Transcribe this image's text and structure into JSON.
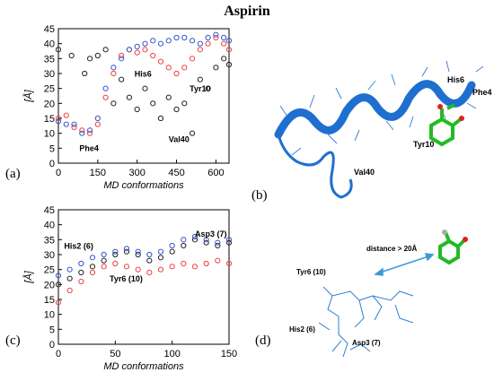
{
  "title": "Aspirin",
  "panel_letters": {
    "a": "(a)",
    "b": "(b)",
    "c": "(c)",
    "d": "(d)"
  },
  "colors": {
    "black_series": "#222222",
    "red_series": "#f04040",
    "blue_series": "#3355cc",
    "protein": "#1f6fd0",
    "ligand": "#22bb22"
  },
  "structure_b": {
    "labels": {
      "his6": "His6",
      "phe4": "Phe4",
      "tyr10": "Tyr10",
      "val40": "Val40"
    }
  },
  "structure_d": {
    "labels": {
      "distance": "distance > 20Å",
      "tyr6": "Tyr6 (10)",
      "his2": "His2 (6)",
      "asp3": "Asp3 (7)"
    }
  },
  "chart_data": [
    {
      "type": "scatter",
      "panel": "(a)",
      "title": "",
      "xlabel": "MD conformations",
      "ylabel": "[Å]",
      "xlim": [
        0,
        650
      ],
      "ylim": [
        0,
        45
      ],
      "xticks": [
        0,
        150,
        300,
        450,
        600
      ],
      "yticks": [
        0,
        5,
        10,
        15,
        20,
        25,
        30,
        35,
        40,
        45
      ],
      "grid": false,
      "annotations": [
        "Phe4",
        "His6",
        "Tyr10",
        "Val40"
      ],
      "series": [
        {
          "color": "#222222",
          "x": [
            0,
            50,
            100,
            120,
            150,
            180,
            210,
            240,
            270,
            300,
            330,
            360,
            390,
            420,
            450,
            480,
            510,
            540,
            570,
            600,
            630,
            650
          ],
          "y": [
            38,
            36,
            30,
            35,
            36,
            38,
            20,
            28,
            22,
            18,
            25,
            20,
            15,
            22,
            18,
            20,
            10,
            28,
            25,
            32,
            35,
            33
          ]
        },
        {
          "color": "#f04040",
          "x": [
            0,
            30,
            60,
            90,
            120,
            150,
            180,
            210,
            240,
            270,
            300,
            330,
            360,
            390,
            420,
            450,
            480,
            510,
            540,
            570,
            600,
            630,
            650
          ],
          "y": [
            15,
            16,
            12,
            11,
            10,
            13,
            22,
            30,
            36,
            38,
            37,
            38,
            36,
            34,
            32,
            30,
            32,
            35,
            38,
            40,
            42,
            40,
            38
          ]
        },
        {
          "color": "#3355cc",
          "x": [
            0,
            30,
            60,
            90,
            120,
            150,
            180,
            210,
            240,
            270,
            300,
            330,
            360,
            390,
            420,
            450,
            480,
            510,
            540,
            570,
            600,
            630,
            650
          ],
          "y": [
            14,
            13,
            13,
            10,
            11,
            15,
            25,
            32,
            35,
            38,
            39,
            40,
            41,
            40,
            41,
            42,
            42,
            41,
            40,
            42,
            43,
            42,
            41
          ]
        }
      ]
    },
    {
      "type": "scatter",
      "panel": "(c)",
      "title": "",
      "xlabel": "MD conformations",
      "ylabel": "[Å]",
      "xlim": [
        0,
        150
      ],
      "ylim": [
        0,
        45
      ],
      "xticks": [
        0,
        50,
        100,
        150
      ],
      "yticks": [
        0,
        5,
        10,
        15,
        20,
        25,
        30,
        35,
        40,
        45
      ],
      "grid": false,
      "annotations": [
        "His2 (6)",
        "Asp3 (7)",
        "Tyr6 (10)"
      ],
      "series": [
        {
          "color": "#222222",
          "x": [
            0,
            10,
            20,
            30,
            40,
            50,
            60,
            70,
            80,
            90,
            100,
            110,
            120,
            130,
            140,
            150
          ],
          "y": [
            20,
            22,
            24,
            26,
            28,
            30,
            31,
            30,
            28,
            29,
            31,
            33,
            35,
            34,
            33,
            34
          ]
        },
        {
          "color": "#f04040",
          "x": [
            0,
            10,
            20,
            30,
            40,
            50,
            60,
            70,
            80,
            90,
            100,
            110,
            120,
            130,
            140,
            150
          ],
          "y": [
            14,
            18,
            21,
            24,
            26,
            27,
            26,
            25,
            24,
            25,
            26,
            27,
            26,
            27,
            28,
            27
          ]
        },
        {
          "color": "#3355cc",
          "x": [
            0,
            10,
            20,
            30,
            40,
            50,
            60,
            70,
            80,
            90,
            100,
            110,
            120,
            130,
            140,
            150
          ],
          "y": [
            23,
            25,
            27,
            29,
            30,
            31,
            32,
            31,
            30,
            31,
            33,
            35,
            36,
            35,
            34,
            35
          ]
        }
      ]
    }
  ]
}
